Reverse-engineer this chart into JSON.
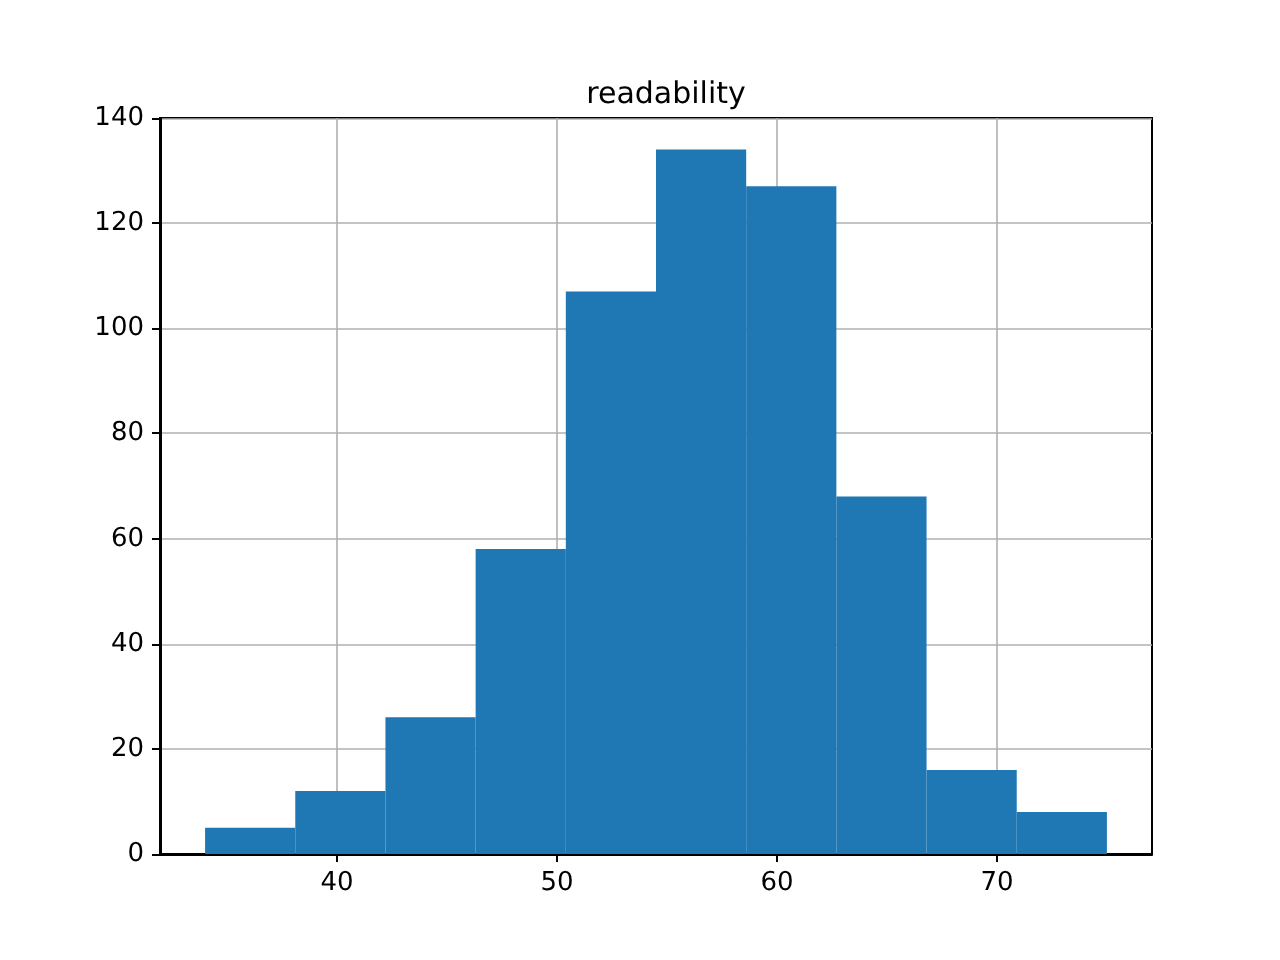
{
  "chart_data": {
    "type": "histogram",
    "title": "readability",
    "bins": [
      34.0,
      38.1,
      42.2,
      46.3,
      50.4,
      54.5,
      58.6,
      62.7,
      66.8,
      70.9,
      75.0
    ],
    "values": [
      5,
      12,
      26,
      58,
      107,
      134,
      127,
      68,
      16,
      8
    ],
    "color": "#1f77b4",
    "xlim": [
      31.95,
      77.05
    ],
    "xticks": [
      40,
      50,
      60,
      70
    ],
    "ylim": [
      0,
      140
    ],
    "yticks": [
      0,
      20,
      40,
      60,
      80,
      100,
      120,
      140
    ],
    "grid": true
  }
}
